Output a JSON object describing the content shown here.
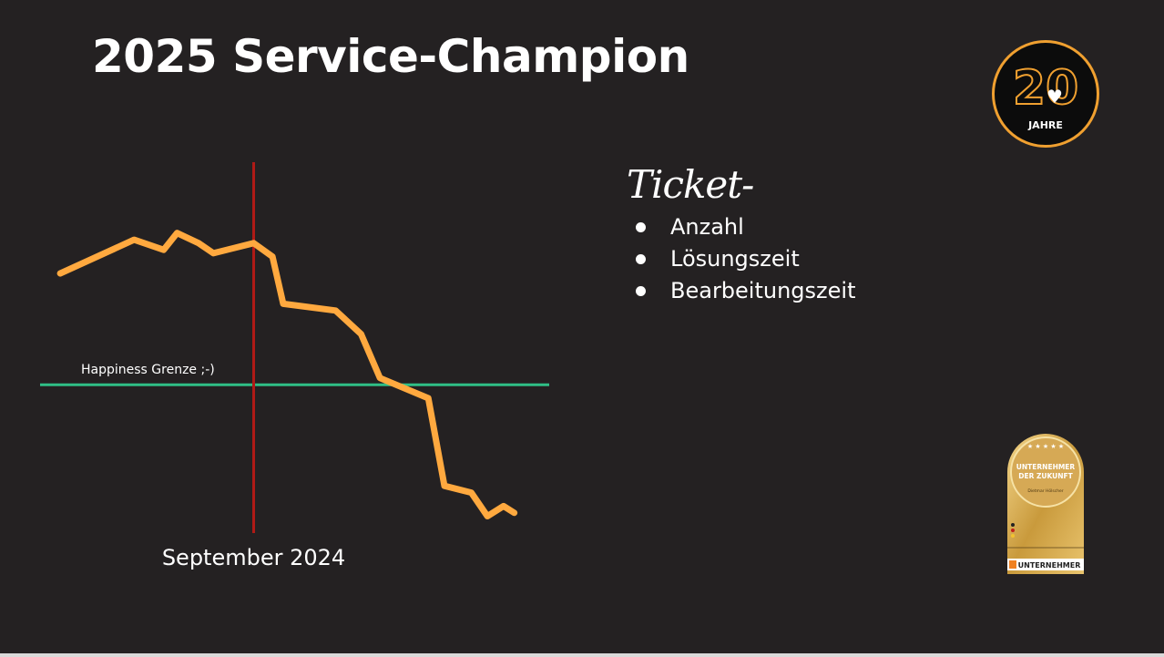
{
  "title": "2025 Service-Champion",
  "logo": {
    "number": "20",
    "text": "JAHRE",
    "accent": "#f0a030"
  },
  "ticket": {
    "heading": "Ticket-",
    "items": [
      "Anzahl",
      "Lösungszeit",
      "Bearbeitungszeit"
    ]
  },
  "badge": {
    "line1": "UNTERNEHMER",
    "line2": "DER ZUKUNFT",
    "line3": "Dietmar Hölscher",
    "brand": "UNTERNEHMER"
  },
  "chart_data": {
    "type": "line",
    "xlabel": "",
    "ylabel": "",
    "grid": false,
    "line_color": "#ffa93f",
    "series": [
      {
        "values": [
          [
            0,
            7.2
          ],
          [
            5.5,
            8.2
          ],
          [
            7.7,
            7.9
          ],
          [
            8.7,
            8.4
          ],
          [
            10.3,
            8.1
          ],
          [
            11.4,
            7.8
          ],
          [
            14.4,
            8.1
          ],
          [
            15.8,
            7.7
          ],
          [
            16.6,
            6.3
          ],
          [
            20.5,
            6.1
          ],
          [
            22.4,
            5.4
          ],
          [
            23.8,
            4.1
          ],
          [
            27.4,
            3.5
          ],
          [
            28.6,
            0.9
          ],
          [
            30.6,
            0.7
          ],
          [
            31.8,
            0.0
          ],
          [
            33.0,
            0.3
          ],
          [
            33.8,
            0.1
          ]
        ]
      }
    ],
    "xlim": [
      -1.5,
      36.4
    ],
    "ylim": [
      -0.5,
      10.5
    ],
    "threshold": {
      "y": 3.9,
      "label": "Happiness Grenze ;-)",
      "color": "#2fbf86"
    },
    "marker": {
      "x": 14.4,
      "label": "September 2024",
      "color": "#b01a16"
    }
  }
}
